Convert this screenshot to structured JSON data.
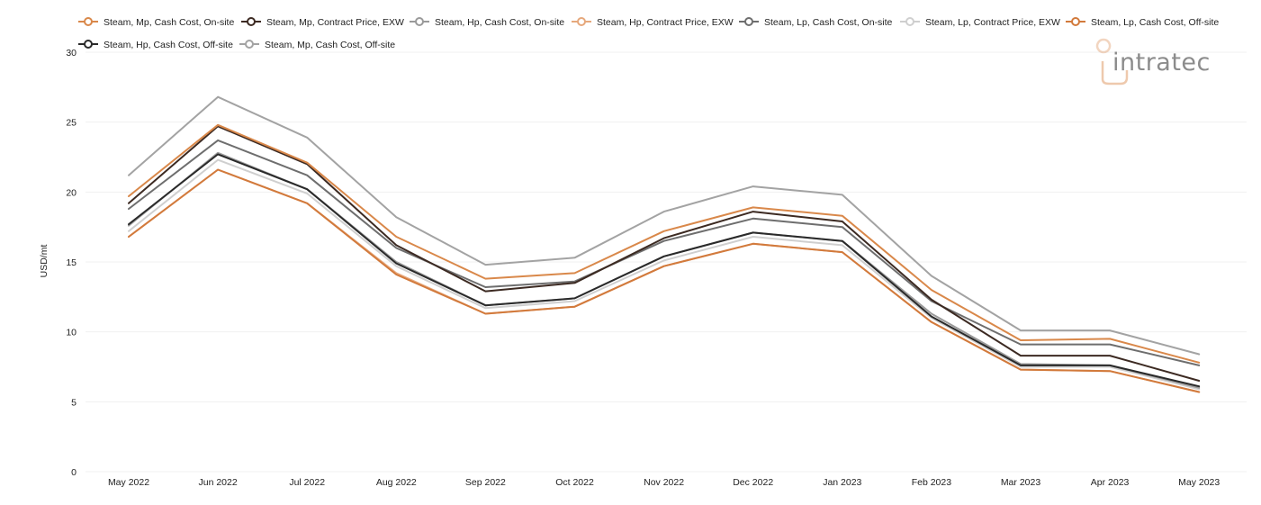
{
  "chart_data": {
    "type": "line",
    "title": "",
    "xlabel": "",
    "ylabel": "USD/mt",
    "ylim": [
      0,
      30
    ],
    "yticks": [
      "0",
      "5",
      "10",
      "15",
      "20",
      "25",
      "30"
    ],
    "grid": true,
    "legend_position": "top",
    "categories": [
      "May 2022",
      "Jun 2022",
      "Jul 2022",
      "Aug 2022",
      "Sep 2022",
      "Oct 2022",
      "Nov 2022",
      "Dec 2022",
      "Jan 2023",
      "Feb 2023",
      "Mar 2023",
      "Apr 2023",
      "May 2023"
    ],
    "series": [
      {
        "name": "Steam, Mp, Cash Cost, On-site",
        "color": "#d9884a",
        "values": [
          19.7,
          24.8,
          22.1,
          16.8,
          13.8,
          14.2,
          17.2,
          18.9,
          18.3,
          13.0,
          9.4,
          9.5,
          7.8
        ]
      },
      {
        "name": "Steam, Mp, Contract Price, EXW",
        "color": "#3c2a22",
        "values": [
          19.2,
          24.7,
          22.0,
          16.2,
          12.9,
          13.5,
          16.7,
          18.6,
          17.9,
          12.3,
          8.3,
          8.3,
          6.5
        ]
      },
      {
        "name": "Steam, Hp, Cash Cost, On-site",
        "color": "#9a9a9a",
        "values": [
          17.6,
          22.8,
          20.2,
          15.0,
          11.9,
          12.4,
          15.4,
          17.1,
          16.5,
          11.3,
          7.7,
          7.6,
          6.0
        ]
      },
      {
        "name": "Steam, Hp, Contract Price, EXW",
        "color": "#e6a87c",
        "values": [
          16.8,
          21.6,
          19.2,
          14.2,
          11.3,
          11.8,
          14.7,
          16.3,
          15.7,
          10.7,
          7.3,
          7.2,
          5.7
        ]
      },
      {
        "name": "Steam, Lp, Cash Cost, On-site",
        "color": "#6e6e6e",
        "values": [
          18.8,
          23.7,
          21.2,
          16.0,
          13.2,
          13.6,
          16.5,
          18.1,
          17.5,
          12.2,
          9.1,
          9.1,
          7.6
        ]
      },
      {
        "name": "Steam, Lp, Contract Price, EXW",
        "color": "#cfcfcf",
        "values": [
          17.2,
          22.3,
          19.9,
          14.7,
          11.7,
          12.2,
          15.1,
          16.8,
          16.2,
          11.0,
          7.5,
          7.5,
          5.9
        ]
      },
      {
        "name": "Steam, Lp, Cash Cost, Off-site",
        "color": "#d27a3c",
        "values": [
          16.8,
          21.6,
          19.2,
          14.1,
          11.3,
          11.8,
          14.7,
          16.3,
          15.7,
          10.7,
          7.3,
          7.2,
          5.7
        ]
      },
      {
        "name": "Steam, Hp, Cash Cost, Off-site",
        "color": "#2a2a2a",
        "values": [
          17.7,
          22.7,
          20.2,
          14.9,
          11.9,
          12.4,
          15.4,
          17.1,
          16.5,
          11.1,
          7.6,
          7.6,
          6.1
        ]
      },
      {
        "name": "Steam, Mp, Cash Cost, Off-site",
        "color": "#a3a3a3",
        "values": [
          21.2,
          26.8,
          23.9,
          18.2,
          14.8,
          15.3,
          18.6,
          20.4,
          19.8,
          14.0,
          10.1,
          10.1,
          8.4
        ]
      }
    ]
  },
  "logo": {
    "text": "intratec",
    "brand_color": "#d9884a",
    "text_color": "#8c8c8c"
  }
}
